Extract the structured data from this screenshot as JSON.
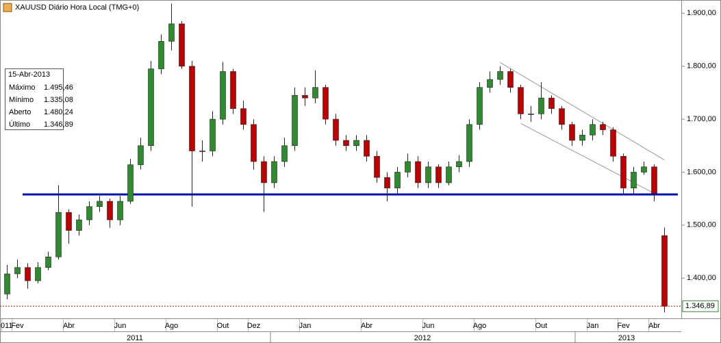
{
  "chart_data": {
    "type": "candlestick",
    "title": "XAUUSD Diário Hora Local (TMG+0)",
    "categories": [
      "011",
      "Fev",
      null,
      null,
      null,
      null,
      "Abr",
      null,
      null,
      null,
      null,
      "Jun",
      null,
      null,
      null,
      null,
      "Ago",
      null,
      null,
      null,
      null,
      "Out",
      null,
      null,
      "Dez",
      null,
      null,
      null,
      null,
      "Jan",
      null,
      null,
      null,
      null,
      null,
      "Abr",
      null,
      null,
      null,
      null,
      null,
      "Jun",
      null,
      null,
      null,
      null,
      "Ago",
      null,
      null,
      null,
      null,
      null,
      "Out",
      null,
      null,
      null,
      null,
      "Jan",
      null,
      null,
      "Fev",
      null,
      null,
      "Abr",
      null
    ],
    "year_labels": [
      "2011",
      "2012",
      "2013"
    ],
    "open": [
      1370,
      1408,
      1420,
      1395,
      1420,
      1440,
      1524,
      1490,
      1510,
      1535,
      1545,
      1510,
      1545,
      1614,
      1650,
      1795,
      1847,
      1880,
      1800,
      1640,
      1640,
      1700,
      1790,
      1720,
      1690,
      1620,
      1580,
      1620,
      1650,
      1745,
      1740,
      1760,
      1700,
      1660,
      1650,
      1660,
      1630,
      1590,
      1570,
      1600,
      1620,
      1580,
      1610,
      1580,
      1610,
      1620,
      1690,
      1760,
      1775,
      1790,
      1760,
      1710,
      1710,
      1740,
      1720,
      1690,
      1660,
      1670,
      1690,
      1680,
      1630,
      1570,
      1600,
      1610,
      1480.24
    ],
    "high": [
      1425,
      1435,
      1428,
      1430,
      1450,
      1575,
      1530,
      1520,
      1545,
      1555,
      1550,
      1555,
      1625,
      1665,
      1810,
      1860,
      1918,
      1885,
      1810,
      1660,
      1715,
      1808,
      1795,
      1735,
      1700,
      1630,
      1630,
      1665,
      1760,
      1760,
      1792,
      1765,
      1710,
      1670,
      1670,
      1670,
      1640,
      1600,
      1610,
      1635,
      1630,
      1620,
      1615,
      1620,
      1632,
      1700,
      1770,
      1790,
      1800,
      1795,
      1765,
      1725,
      1770,
      1745,
      1725,
      1695,
      1680,
      1700,
      1695,
      1685,
      1635,
      1610,
      1620,
      1615,
      1495.46
    ],
    "low": [
      1360,
      1400,
      1380,
      1390,
      1415,
      1435,
      1465,
      1480,
      1500,
      1525,
      1495,
      1500,
      1540,
      1605,
      1640,
      1785,
      1830,
      1795,
      1535,
      1620,
      1630,
      1690,
      1710,
      1680,
      1605,
      1525,
      1570,
      1610,
      1640,
      1725,
      1730,
      1690,
      1650,
      1640,
      1640,
      1620,
      1580,
      1545,
      1560,
      1590,
      1570,
      1570,
      1570,
      1575,
      1600,
      1610,
      1680,
      1750,
      1765,
      1750,
      1700,
      1695,
      1700,
      1710,
      1680,
      1650,
      1650,
      1660,
      1670,
      1620,
      1560,
      1560,
      1595,
      1545,
      1335.08
    ],
    "close": [
      1408,
      1420,
      1395,
      1420,
      1440,
      1524,
      1490,
      1510,
      1535,
      1545,
      1510,
      1545,
      1614,
      1650,
      1795,
      1847,
      1880,
      1800,
      1640,
      1640,
      1700,
      1790,
      1720,
      1690,
      1620,
      1580,
      1620,
      1650,
      1745,
      1740,
      1760,
      1700,
      1660,
      1650,
      1660,
      1630,
      1590,
      1570,
      1600,
      1620,
      1580,
      1610,
      1580,
      1610,
      1620,
      1690,
      1760,
      1775,
      1790,
      1760,
      1710,
      1710,
      1740,
      1720,
      1690,
      1660,
      1670,
      1690,
      1680,
      1630,
      1570,
      1600,
      1610,
      1560,
      1346.89
    ],
    "up_color": "#2e8b2e",
    "down_color": "#c00000",
    "ylim": [
      1324,
      1925
    ],
    "yticks": [
      {
        "value": 1400,
        "label": "1.400,00"
      },
      {
        "value": 1500,
        "label": "1.500,00"
      },
      {
        "value": 1600,
        "label": "1.600,00"
      },
      {
        "value": 1700,
        "label": "1.700,00"
      },
      {
        "value": 1800,
        "label": "1.800,00"
      },
      {
        "value": 1900,
        "label": "1.900,00"
      }
    ],
    "support_line": {
      "value": 1558,
      "color": "#0010c8"
    },
    "channel": [
      {
        "from": [
          48,
          1807
        ],
        "to": [
          64,
          1623
        ]
      },
      {
        "from": [
          50,
          1692
        ],
        "to": [
          63,
          1560
        ]
      }
    ],
    "last_price": {
      "value": 1346.89,
      "label": "1.346,89",
      "color": "#d00000"
    },
    "info": {
      "date": "15-Abr-2013",
      "rows": [
        [
          "Máximo",
          "1.495,46"
        ],
        [
          "Mínimo",
          "1.335,08"
        ],
        [
          "Aberto",
          "1.480,24"
        ],
        [
          "Último",
          "1.346,89"
        ]
      ]
    }
  }
}
